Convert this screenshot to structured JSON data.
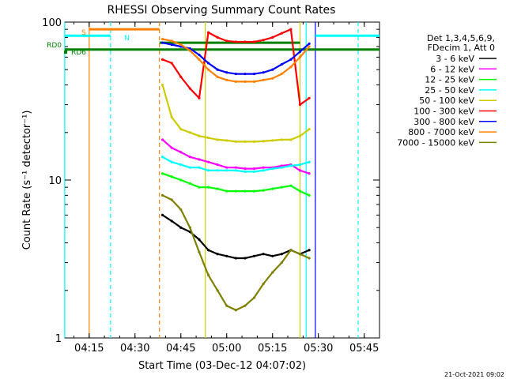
{
  "chart_data": {
    "type": "line",
    "title": "RHESSI Observing Summary Count Rates",
    "xlabel": "Start Time (03-Dec-12 04:07:02)",
    "ylabel": "Count Rate (s⁻¹ detector⁻¹)",
    "y_scale": "log",
    "ylim": [
      1,
      100
    ],
    "xlim": [
      "04:07:02",
      "05:50:00"
    ],
    "x_ticks": [
      "04:15",
      "04:30",
      "04:45",
      "05:00",
      "05:15",
      "05:30",
      "05:45"
    ],
    "y_ticks": [
      "1",
      "10",
      "100"
    ],
    "grid": false,
    "legend_position": "right",
    "legend_header": [
      "Det 1,3,4,5,6,9,",
      "FDecim 1, Att 0"
    ],
    "timestamp": "21-Oct-2021 09:02",
    "series": [
      {
        "name": "3 - 6 keV",
        "color": "#000000",
        "x": [
          "04:39",
          "04:42",
          "04:45",
          "04:48",
          "04:51",
          "04:54",
          "04:57",
          "05:00",
          "05:03",
          "05:06",
          "05:09",
          "05:12",
          "05:15",
          "05:18",
          "05:21",
          "05:24",
          "05:27"
        ],
        "y": [
          6,
          5.5,
          5,
          4.7,
          4.2,
          3.6,
          3.4,
          3.3,
          3.2,
          3.2,
          3.3,
          3.4,
          3.3,
          3.4,
          3.6,
          3.4,
          3.6
        ]
      },
      {
        "name": "6 - 12 keV",
        "color": "#ff00ff",
        "x": [
          "04:39",
          "04:42",
          "04:45",
          "04:48",
          "04:51",
          "04:54",
          "04:57",
          "05:00",
          "05:03",
          "05:06",
          "05:09",
          "05:12",
          "05:15",
          "05:18",
          "05:21",
          "05:24",
          "05:27"
        ],
        "y": [
          18,
          16,
          15,
          14,
          13.5,
          13,
          12.5,
          12,
          12,
          11.8,
          11.8,
          12,
          12,
          12.3,
          12.5,
          11.5,
          11
        ]
      },
      {
        "name": "12 - 25 keV",
        "color": "#00ff00",
        "x": [
          "04:39",
          "04:42",
          "04:45",
          "04:48",
          "04:51",
          "04:54",
          "04:57",
          "05:00",
          "05:03",
          "05:06",
          "05:09",
          "05:12",
          "05:15",
          "05:18",
          "05:21",
          "05:24",
          "05:27"
        ],
        "y": [
          11,
          10.5,
          10,
          9.5,
          9,
          9,
          8.8,
          8.5,
          8.5,
          8.5,
          8.5,
          8.6,
          8.8,
          9,
          9.2,
          8.5,
          8
        ]
      },
      {
        "name": "25 - 50 keV",
        "color": "#00ffff",
        "x": [
          "04:39",
          "04:42",
          "04:45",
          "04:48",
          "04:51",
          "04:54",
          "04:57",
          "05:00",
          "05:03",
          "05:06",
          "05:09",
          "05:12",
          "05:15",
          "05:18",
          "05:21",
          "05:24",
          "05:27"
        ],
        "y": [
          14,
          13,
          12.5,
          12,
          12,
          11.5,
          11.5,
          11.5,
          11.5,
          11.3,
          11.3,
          11.5,
          11.8,
          12,
          12.3,
          12.5,
          13
        ]
      },
      {
        "name": "50 - 100 keV",
        "color": "#cccc00",
        "x": [
          "04:39",
          "04:42",
          "04:45",
          "04:48",
          "04:51",
          "04:54",
          "04:57",
          "05:00",
          "05:03",
          "05:06",
          "05:09",
          "05:12",
          "05:15",
          "05:18",
          "05:21",
          "05:24",
          "05:27"
        ],
        "y": [
          40,
          25,
          21,
          20,
          19,
          18.5,
          18,
          17.8,
          17.5,
          17.5,
          17.5,
          17.6,
          17.8,
          18,
          18,
          19,
          21
        ]
      },
      {
        "name": "100 - 300 keV",
        "color": "#ff0000",
        "x": [
          "04:39",
          "04:42",
          "04:45",
          "04:48",
          "04:51",
          "04:54",
          "04:57",
          "05:00",
          "05:03",
          "05:06",
          "05:09",
          "05:12",
          "05:15",
          "05:18",
          "05:21",
          "05:24",
          "05:27"
        ],
        "y": [
          58,
          55,
          45,
          38,
          33,
          86,
          80,
          76,
          75,
          75,
          75,
          77,
          80,
          85,
          90,
          30,
          33
        ]
      },
      {
        "name": "300 - 800 keV",
        "color": "#0000ff",
        "x": [
          "04:39",
          "04:42",
          "04:45",
          "04:48",
          "04:51",
          "04:54",
          "04:57",
          "05:00",
          "05:03",
          "05:06",
          "05:09",
          "05:12",
          "05:15",
          "05:18",
          "05:21",
          "05:24",
          "05:27"
        ],
        "y": [
          74,
          72,
          70,
          68,
          62,
          55,
          50,
          48,
          47,
          47,
          47,
          48,
          50,
          54,
          58,
          65,
          73
        ]
      },
      {
        "name": "800 - 7000 keV",
        "color": "#ff8000",
        "x": [
          "04:39",
          "04:42",
          "04:45",
          "04:48",
          "04:51",
          "04:54",
          "04:57",
          "05:00",
          "05:03",
          "05:06",
          "05:09",
          "05:12",
          "05:15",
          "05:18",
          "05:21",
          "05:24",
          "05:27"
        ],
        "y": [
          78,
          76,
          72,
          66,
          58,
          50,
          45,
          43,
          42,
          42,
          42,
          43,
          44,
          47,
          52,
          60,
          70
        ]
      },
      {
        "name": "7000 - 15000 keV",
        "color": "#808000",
        "x": [
          "04:39",
          "04:42",
          "04:45",
          "04:48",
          "04:51",
          "04:54",
          "04:57",
          "05:00",
          "05:03",
          "05:06",
          "05:09",
          "05:12",
          "05:15",
          "05:18",
          "05:21",
          "05:24",
          "05:27"
        ],
        "y": [
          8,
          7.5,
          6.5,
          5,
          3.5,
          2.5,
          2,
          1.6,
          1.5,
          1.6,
          1.8,
          2.2,
          2.6,
          3,
          3.6,
          3.4,
          3.2
        ]
      }
    ],
    "flags": [
      {
        "name": "S",
        "color": "#ff8000",
        "y": 90,
        "x_start": "04:15",
        "x_end": "04:38"
      },
      {
        "name": "N",
        "color": "#00ffff",
        "y": 82,
        "x_start": "04:07",
        "x_end": "04:22"
      },
      {
        "name": "N",
        "color": "#00ffff",
        "y": 82,
        "x_start": "05:29",
        "x_end": "05:50"
      },
      {
        "name": "RD0",
        "color": "#008000",
        "y": 74,
        "x_start": "04:38",
        "x_end": "05:24"
      },
      {
        "name": "RD6",
        "color": "#008000",
        "y": 67,
        "x_start": "04:07",
        "x_end": "05:50"
      }
    ],
    "vertical_markers": [
      {
        "x": "04:07",
        "color": "#00ffff",
        "style": "solid"
      },
      {
        "x": "04:15",
        "color": "#ff8000",
        "style": "solid"
      },
      {
        "x": "04:22",
        "color": "#00ffff",
        "style": "dashed"
      },
      {
        "x": "04:38",
        "color": "#ff8000",
        "style": "dashed"
      },
      {
        "x": "04:53",
        "color": "#cccc00",
        "style": "solid"
      },
      {
        "x": "05:24",
        "color": "#cccc00",
        "style": "solid"
      },
      {
        "x": "05:26",
        "color": "#00ffff",
        "style": "solid"
      },
      {
        "x": "05:29",
        "color": "#0000ff",
        "style": "solid"
      },
      {
        "x": "05:43",
        "color": "#00ffff",
        "style": "dashed"
      }
    ]
  }
}
